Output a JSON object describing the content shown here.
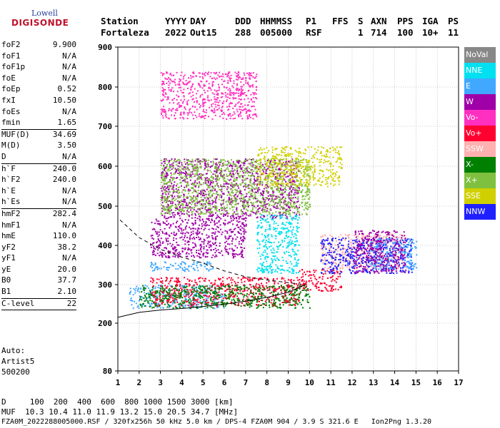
{
  "logo": {
    "top": "Lowell",
    "bottom": "DIGISONDE"
  },
  "header": {
    "labels": [
      {
        "text": "Station",
        "x": 141
      },
      {
        "text": "YYYY",
        "x": 231
      },
      {
        "text": "DAY",
        "x": 266
      },
      {
        "text": "DDD",
        "x": 329
      },
      {
        "text": "HHMMSS",
        "x": 364
      },
      {
        "text": "P1",
        "x": 428
      },
      {
        "text": "FFS",
        "x": 465
      },
      {
        "text": "S",
        "x": 501
      },
      {
        "text": "AXN",
        "x": 519
      },
      {
        "text": "PPS",
        "x": 556
      },
      {
        "text": "IGA",
        "x": 591
      },
      {
        "text": "PS",
        "x": 627
      }
    ],
    "values": [
      {
        "text": "Fortaleza",
        "x": 141
      },
      {
        "text": "2022",
        "x": 231
      },
      {
        "text": "Out15",
        "x": 266
      },
      {
        "text": "288",
        "x": 329
      },
      {
        "text": "005000",
        "x": 364
      },
      {
        "text": "RSF",
        "x": 428
      },
      {
        "text": "1",
        "x": 501
      },
      {
        "text": "714",
        "x": 519
      },
      {
        "text": "100",
        "x": 556
      },
      {
        "text": "10+",
        "x": 591
      },
      {
        "text": "11",
        "x": 627
      }
    ]
  },
  "params": [
    {
      "name": "foF2",
      "value": "9.900"
    },
    {
      "name": "foF1",
      "value": "N/A"
    },
    {
      "name": "foF1p",
      "value": "N/A"
    },
    {
      "name": "foE",
      "value": "N/A"
    },
    {
      "name": "foEp",
      "value": "0.52"
    },
    {
      "name": "fxI",
      "value": "10.50"
    },
    {
      "name": "foEs",
      "value": "N/A"
    },
    {
      "name": "fmin",
      "value": "1.65"
    },
    {
      "sep": true
    },
    {
      "name": "MUF(D)",
      "value": "34.69"
    },
    {
      "name": "M(D)",
      "value": "3.50"
    },
    {
      "name": "D",
      "value": "N/A"
    },
    {
      "sep": true
    },
    {
      "name": "h`F",
      "value": "240.0"
    },
    {
      "name": "h`F2",
      "value": "240.0"
    },
    {
      "name": "h`E",
      "value": "N/A"
    },
    {
      "name": "h`Es",
      "value": "N/A"
    },
    {
      "sep": true
    },
    {
      "name": "hmF2",
      "value": "282.4"
    },
    {
      "name": "hmF1",
      "value": "N/A"
    },
    {
      "name": "hmE",
      "value": "110.0"
    },
    {
      "name": "yF2",
      "value": "38.2"
    },
    {
      "name": "yF1",
      "value": "N/A"
    },
    {
      "name": "yE",
      "value": "20.0"
    },
    {
      "name": "B0",
      "value": "37.7"
    },
    {
      "name": "B1",
      "value": "2.10"
    },
    {
      "sep": true
    },
    {
      "name": "C-level",
      "value": "22"
    },
    {
      "sep": true
    }
  ],
  "auto": {
    "line1": "Auto:",
    "line2": "Artist5",
    "line3": "500200"
  },
  "footer": {
    "d_line": "D     100  200  400  600  800 1000 1500 3000 [km]",
    "muf_line": "MUF  10.3 10.4 11.0 11.9 13.2 15.0 20.5 34.7 [MHz]",
    "info_line": "FZA0M_2022288005000.RSF / 320fx256h 50 kHz 5.0 km / DPS-4 FZA0M 904 / 3.9 S 321.6 E   Ion2Png 1.3.20"
  },
  "legend": [
    {
      "label": "NoVal",
      "color": "#888888"
    },
    {
      "label": "NNE",
      "color": "#00e0f0"
    },
    {
      "label": "E",
      "color": "#40a8ff"
    },
    {
      "label": "W",
      "color": "#a000a8"
    },
    {
      "label": "Vo-",
      "color": "#ff30c0"
    },
    {
      "label": "Vo+",
      "color": "#ff0030"
    },
    {
      "label": "SSW",
      "color": "#ffb0b0"
    },
    {
      "label": "X-",
      "color": "#008000"
    },
    {
      "label": "X+",
      "color": "#80c040"
    },
    {
      "label": "SSE",
      "color": "#d0d000"
    },
    {
      "label": "NNW",
      "color": "#2020ff"
    }
  ],
  "chart_data": {
    "type": "scatter",
    "x_ticks": [
      "1",
      "2",
      "3",
      "4",
      "5",
      "6",
      "7",
      "8",
      "9",
      "10",
      "11",
      "12",
      "13",
      "14",
      "15",
      "16",
      "17"
    ],
    "y_ticks": [
      "80",
      "200",
      "300",
      "400",
      "500",
      "600",
      "700",
      "800",
      "900"
    ],
    "xlim": [
      1,
      17
    ],
    "grid": true,
    "clusters": [
      {
        "series": "E",
        "x": [
          1.5,
          6.0
        ],
        "y": [
          240,
          300
        ]
      },
      {
        "series": "E",
        "x": [
          2.5,
          5.5
        ],
        "y": [
          335,
          360
        ]
      },
      {
        "series": "Vo+",
        "x": [
          2.5,
          9.5
        ],
        "y": [
          245,
          320
        ]
      },
      {
        "series": "Vo+",
        "x": [
          9.5,
          11.5
        ],
        "y": [
          285,
          340
        ]
      },
      {
        "series": "W",
        "x": [
          2.5,
          7.0
        ],
        "y": [
          370,
          470
        ]
      },
      {
        "series": "W",
        "x": [
          3.0,
          9.5
        ],
        "y": [
          470,
          620
        ]
      },
      {
        "series": "NNE",
        "x": [
          7.5,
          9.5
        ],
        "y": [
          330,
          480
        ]
      },
      {
        "series": "X-",
        "x": [
          2.0,
          10.0
        ],
        "y": [
          240,
          300
        ]
      },
      {
        "series": "X+",
        "x": [
          3.0,
          10.0
        ],
        "y": [
          480,
          620
        ]
      },
      {
        "series": "SSE",
        "x": [
          7.5,
          11.5
        ],
        "y": [
          550,
          650
        ]
      },
      {
        "series": "SSW",
        "x": [
          10.5,
          14.5
        ],
        "y": [
          340,
          430
        ]
      },
      {
        "series": "NNW",
        "x": [
          10.5,
          14.8
        ],
        "y": [
          330,
          420
        ]
      },
      {
        "series": "Vo-",
        "x": [
          3.0,
          7.5
        ],
        "y": [
          720,
          840
        ]
      },
      {
        "series": "E",
        "x": [
          12.8,
          15.0
        ],
        "y": [
          340,
          420
        ]
      },
      {
        "series": "W",
        "x": [
          12.0,
          14.5
        ],
        "y": [
          330,
          440
        ]
      }
    ],
    "solid_curve": {
      "x": [
        1.0,
        2.0,
        3.0,
        4.0,
        5.0,
        6.0,
        7.0,
        8.0,
        9.0,
        9.5,
        9.8
      ],
      "y": [
        215,
        228,
        234,
        238,
        243,
        249,
        257,
        267,
        280,
        292,
        300
      ]
    },
    "dashed_curve": {
      "x": [
        1.1,
        2.0,
        3.0,
        4.0,
        5.0,
        6.0,
        7.0,
        8.0,
        9.0,
        9.8
      ],
      "y": [
        465,
        420,
        390,
        370,
        355,
        335,
        320,
        312,
        305,
        300
      ]
    }
  }
}
